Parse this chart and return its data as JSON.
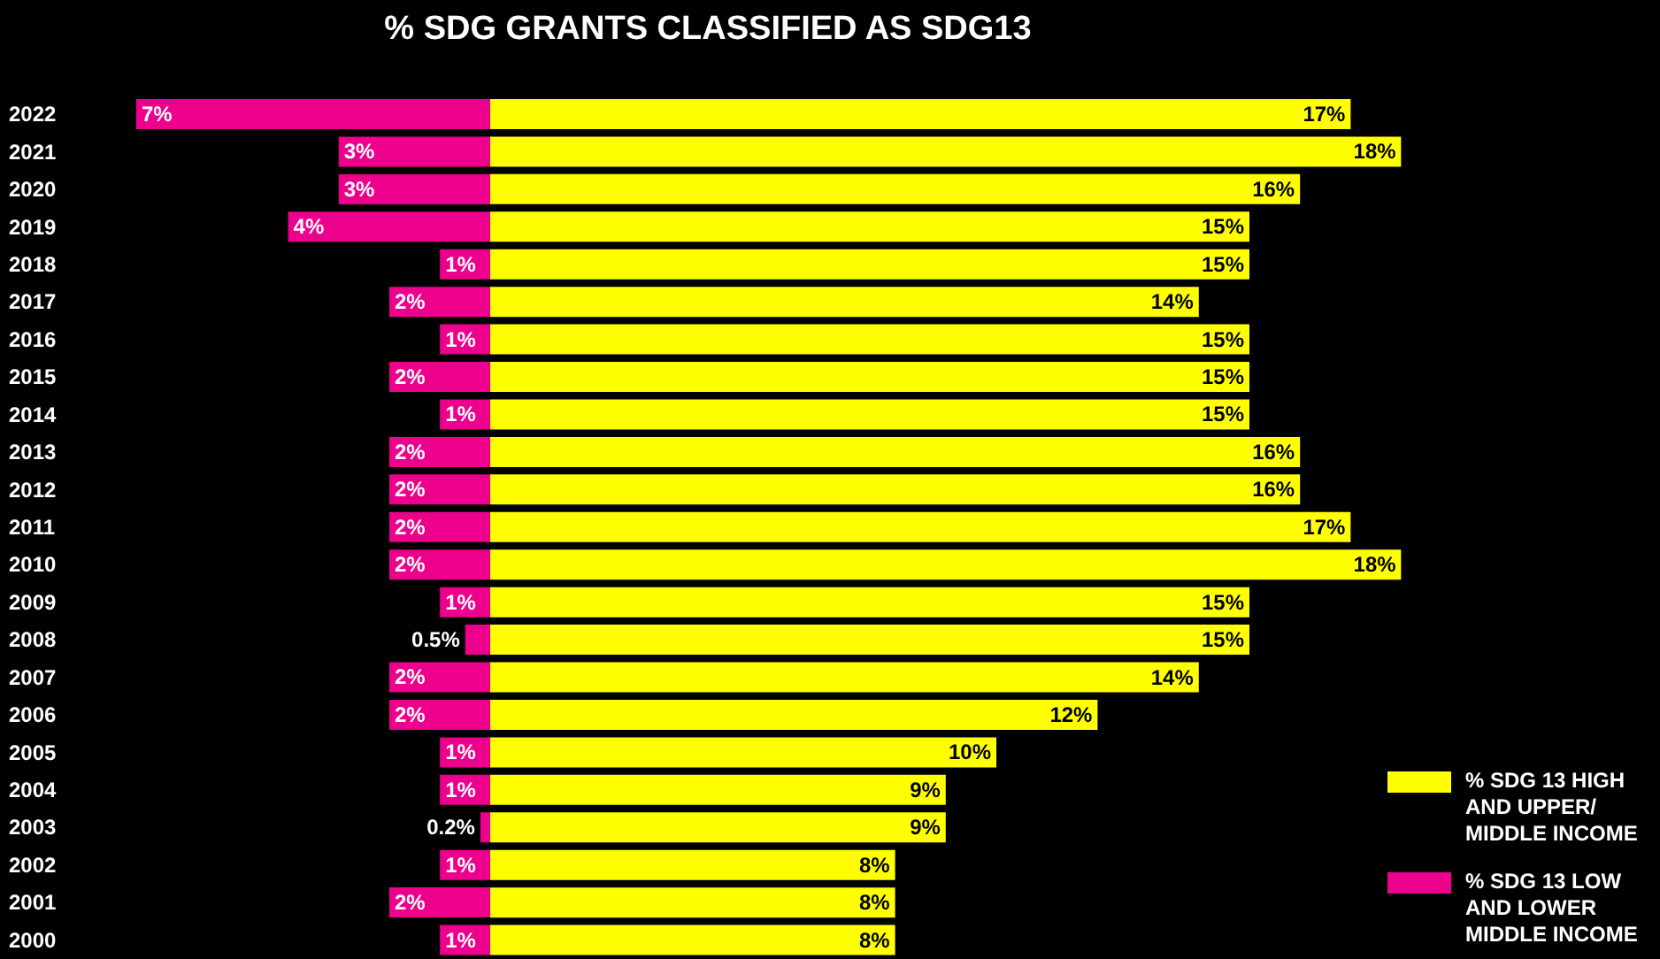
{
  "chart_data": [
    {
      "type": "bar",
      "orientation": "horizontal",
      "title": "% SDG GRANTS CLASSIFIED AS SDG13",
      "categories": [
        "2022",
        "2021",
        "2020",
        "2019",
        "2018",
        "2017",
        "2016",
        "2015",
        "2014",
        "2013",
        "2012",
        "2011",
        "2010",
        "2009",
        "2008",
        "2007",
        "2006",
        "2005",
        "2004",
        "2003",
        "2002",
        "2001",
        "2000"
      ],
      "series": [
        {
          "name": "% SDG 13 LOW AND LOWER MIDDLE INCOME",
          "color": "#ec008c",
          "values": [
            7,
            3,
            3,
            4,
            1,
            2,
            1,
            2,
            1,
            2,
            2,
            2,
            2,
            1,
            0.5,
            2,
            2,
            1,
            1,
            0.2,
            1,
            2,
            1
          ],
          "value_labels": [
            "7%",
            "3%",
            "3%",
            "4%",
            "1%",
            "2%",
            "1%",
            "2%",
            "1%",
            "2%",
            "2%",
            "2%",
            "2%",
            "1%",
            "0.5%",
            "2%",
            "2%",
            "1%",
            "1%",
            "0.2%",
            "1%",
            "2%",
            "1%"
          ]
        }
      ],
      "xlim": [
        7,
        0
      ],
      "tick_labels": "y",
      "legend": "bottom right"
    },
    {
      "type": "bar",
      "orientation": "horizontal",
      "categories": [
        "2022",
        "2021",
        "2020",
        "2019",
        "2018",
        "2017",
        "2016",
        "2015",
        "2014",
        "2013",
        "2012",
        "2011",
        "2010",
        "2009",
        "2008",
        "2007",
        "2006",
        "2005",
        "2004",
        "2003",
        "2002",
        "2001",
        "2000"
      ],
      "series": [
        {
          "name": "% SDG 13 HIGH AND UPPER/ MIDDLE INCOME",
          "color": "#ffff00",
          "values": [
            17,
            18,
            16,
            15,
            15,
            14,
            15,
            15,
            15,
            16,
            16,
            17,
            18,
            15,
            15,
            14,
            12,
            10,
            9,
            9,
            8,
            8,
            8
          ],
          "value_labels": [
            "17%",
            "18%",
            "16%",
            "15%",
            "15%",
            "14%",
            "15%",
            "15%",
            "15%",
            "16%",
            "16%",
            "17%",
            "18%",
            "15%",
            "15%",
            "14%",
            "12%",
            "10%",
            "9%",
            "9%",
            "8%",
            "8%",
            "8%"
          ]
        }
      ],
      "xlim": [
        0,
        18
      ],
      "tick_labels": false,
      "legend": "bottom right"
    }
  ]
}
